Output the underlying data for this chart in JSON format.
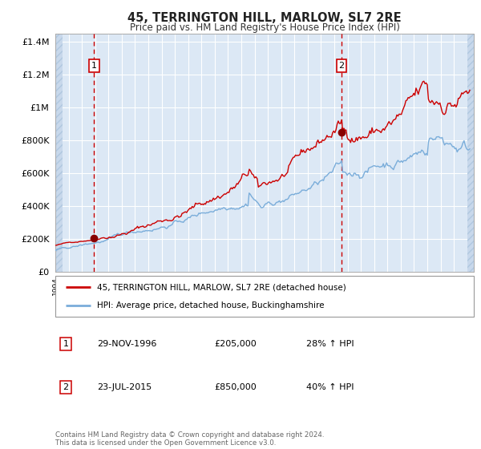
{
  "title": "45, TERRINGTON HILL, MARLOW, SL7 2RE",
  "subtitle": "Price paid vs. HM Land Registry's House Price Index (HPI)",
  "ylim": [
    0,
    1450000
  ],
  "xlim_start": 1994.0,
  "xlim_end": 2025.5,
  "background_color": "#dce8f5",
  "grid_color": "#ffffff",
  "red_line_color": "#cc0000",
  "blue_line_color": "#7aadda",
  "marker_color": "#880000",
  "vline_color": "#cc0000",
  "purchase1_year": 1996.91,
  "purchase1_price": 205000,
  "purchase2_year": 2015.55,
  "purchase2_price": 850000,
  "legend_entries": [
    "45, TERRINGTON HILL, MARLOW, SL7 2RE (detached house)",
    "HPI: Average price, detached house, Buckinghamshire"
  ],
  "table_rows": [
    [
      "1",
      "29-NOV-1996",
      "£205,000",
      "28% ↑ HPI"
    ],
    [
      "2",
      "23-JUL-2015",
      "£850,000",
      "40% ↑ HPI"
    ]
  ],
  "footer": "Contains HM Land Registry data © Crown copyright and database right 2024.\nThis data is licensed under the Open Government Licence v3.0.",
  "ytick_values": [
    0,
    200000,
    400000,
    600000,
    800000,
    1000000,
    1200000,
    1400000
  ],
  "ytick_labels": [
    "£0",
    "£200K",
    "£400K",
    "£600K",
    "£800K",
    "£1M",
    "£1.2M",
    "£1.4M"
  ]
}
